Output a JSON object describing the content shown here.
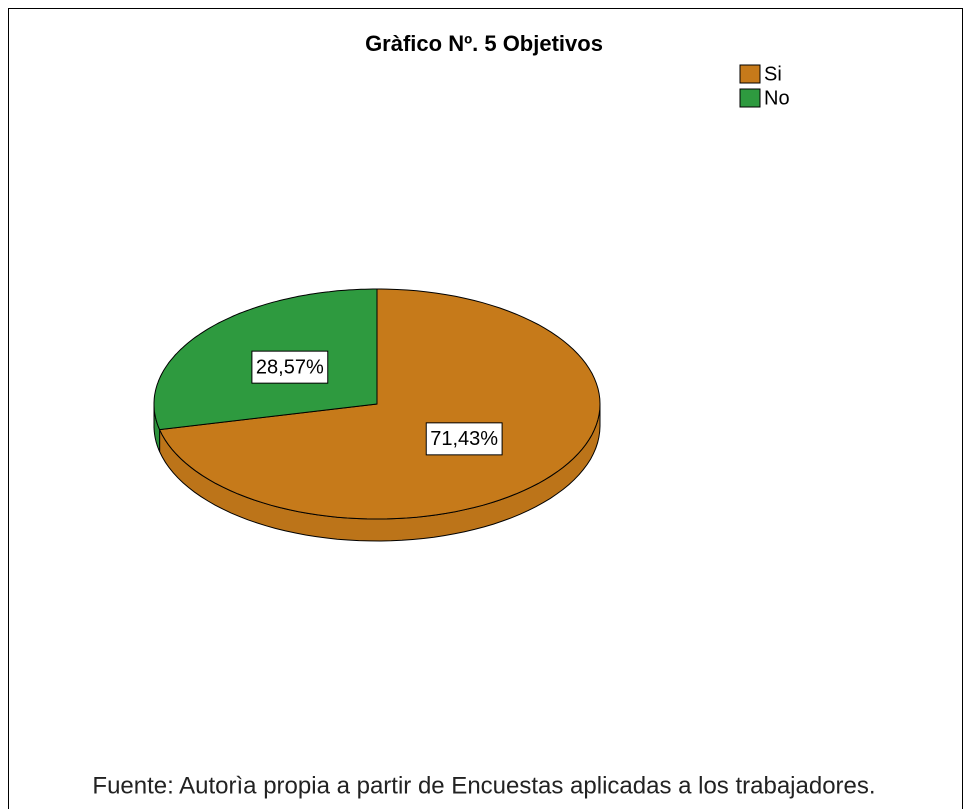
{
  "chart_data": {
    "type": "pie",
    "title": "Gràfico Nº. 5 Objetivos",
    "categories": [
      "Si",
      "No"
    ],
    "values": [
      71.43,
      28.57
    ],
    "value_labels": [
      "71,43%",
      "28,57%"
    ],
    "colors": [
      "#c67a1a",
      "#2e9a3f"
    ],
    "legend": "top-right",
    "source": "Fuente: Autorìa propia a partir de Encuestas  aplicadas a los trabajadores."
  }
}
